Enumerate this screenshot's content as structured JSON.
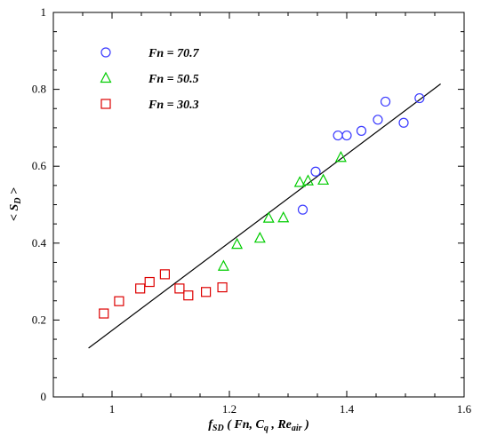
{
  "chart_data": {
    "type": "scatter",
    "title": "",
    "xlabel": "f_SD ( Fn, C_q , Re_air )",
    "xlabel_parts": {
      "f": "f",
      "f_sub": "SD",
      "open": " ( ",
      "fn": "Fn",
      "comma1": ", ",
      "c": "C",
      "c_sub": "q",
      "comma2": " , ",
      "re": "Re",
      "re_sub": "air",
      "close": " )"
    },
    "ylabel": "< S_D >",
    "ylabel_parts": {
      "open": "< ",
      "s": "S",
      "s_sub": "D",
      "close": " >"
    },
    "xlim": [
      0.9,
      1.6
    ],
    "ylim": [
      0,
      1
    ],
    "xticks": [
      1,
      1.2,
      1.4,
      1.6
    ],
    "xtick_labels": [
      "1",
      "1.2",
      "1.4",
      "1.6"
    ],
    "yticks": [
      0,
      0.2,
      0.4,
      0.6,
      0.8,
      1
    ],
    "ytick_labels": [
      "0",
      "0.2",
      "0.4",
      "0.6",
      "0.8",
      "1"
    ],
    "grid": false,
    "legend_position": "top-left",
    "series": [
      {
        "name": "Fn = 70.7",
        "marker": "circle",
        "color": "#3a3aff",
        "x": [
          1.325,
          1.347,
          1.385,
          1.4,
          1.425,
          1.453,
          1.466,
          1.497,
          1.524
        ],
        "y": [
          0.487,
          0.586,
          0.68,
          0.68,
          0.692,
          0.721,
          0.768,
          0.713,
          0.777
        ]
      },
      {
        "name": "Fn = 50.5",
        "marker": "triangle",
        "color": "#00cc00",
        "x": [
          1.19,
          1.213,
          1.252,
          1.267,
          1.292,
          1.32,
          1.334,
          1.36,
          1.39
        ],
        "y": [
          0.34,
          0.397,
          0.413,
          0.465,
          0.466,
          0.558,
          0.562,
          0.564,
          0.623
        ]
      },
      {
        "name": "Fn = 30.3",
        "marker": "square",
        "color": "#dd0000",
        "x": [
          0.986,
          1.012,
          1.048,
          1.064,
          1.09,
          1.115,
          1.13,
          1.16,
          1.188
        ],
        "y": [
          0.217,
          0.249,
          0.282,
          0.299,
          0.319,
          0.282,
          0.264,
          0.273,
          0.285
        ]
      }
    ],
    "fit_line": {
      "x": [
        0.96,
        1.56
      ],
      "y": [
        0.127,
        0.814
      ],
      "color": "#000000"
    }
  }
}
